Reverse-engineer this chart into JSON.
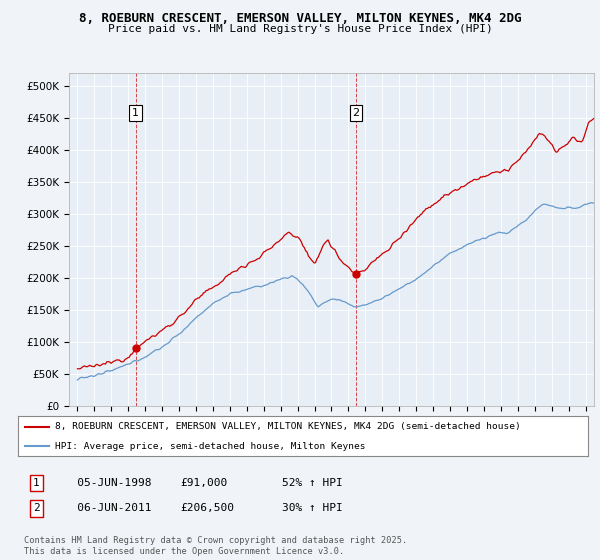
{
  "title_line1": "8, ROEBURN CRESCENT, EMERSON VALLEY, MILTON KEYNES, MK4 2DG",
  "title_line2": "Price paid vs. HM Land Registry's House Price Index (HPI)",
  "bg_color": "#f0f4f8",
  "plot_bg_color": "#e8eef5",
  "red_color": "#cc0000",
  "blue_color": "#6699cc",
  "grid_color": "#ffffff",
  "ylim": [
    0,
    520000
  ],
  "yticks": [
    0,
    50000,
    100000,
    150000,
    200000,
    250000,
    300000,
    350000,
    400000,
    450000,
    500000
  ],
  "ytick_labels": [
    "£0",
    "£50K",
    "£100K",
    "£150K",
    "£200K",
    "£250K",
    "£300K",
    "£350K",
    "£400K",
    "£450K",
    "£500K"
  ],
  "sale1_x": 1998.44,
  "sale1_y": 91000,
  "sale2_x": 2011.44,
  "sale2_y": 206500,
  "legend_red": "8, ROEBURN CRESCENT, EMERSON VALLEY, MILTON KEYNES, MK4 2DG (semi-detached house)",
  "legend_blue": "HPI: Average price, semi-detached house, Milton Keynes",
  "copyright": "Contains HM Land Registry data © Crown copyright and database right 2025.\nThis data is licensed under the Open Government Licence v3.0.",
  "xlim_start": 1994.5,
  "xlim_end": 2025.5
}
